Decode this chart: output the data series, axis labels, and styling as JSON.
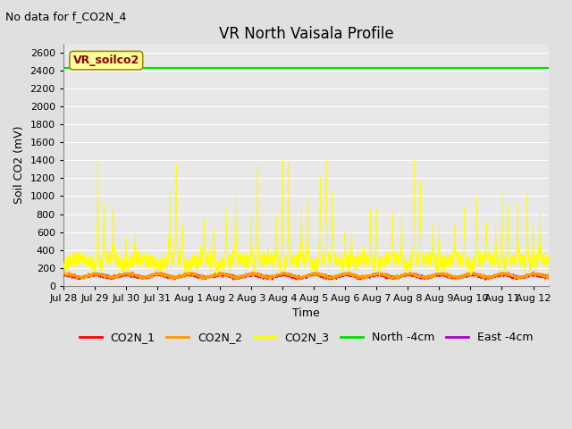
{
  "title": "VR North Vaisala Profile",
  "no_data_text": "No data for f_CO2N_4",
  "ylabel": "Soil CO2 (mV)",
  "xlabel": "Time",
  "annotation_box": "VR_soilco2",
  "ylim": [
    0,
    2700
  ],
  "yticks": [
    0,
    200,
    400,
    600,
    800,
    1000,
    1200,
    1400,
    1600,
    1800,
    2000,
    2200,
    2400,
    2600
  ],
  "x_tick_labels": [
    "Jul 28",
    "Jul 29",
    "Jul 30",
    "Jul 31",
    "Aug 1",
    "Aug 2",
    "Aug 3",
    "Aug 4",
    "Aug 5",
    "Aug 6",
    "Aug 7",
    "Aug 8",
    "Aug 9",
    "Aug 10",
    "Aug 11",
    "Aug 12"
  ],
  "x_tick_positions": [
    0,
    1,
    2,
    3,
    4,
    5,
    6,
    7,
    8,
    9,
    10,
    11,
    12,
    13,
    14,
    15
  ],
  "n_days": 15.5,
  "north_4cm_value": 2430,
  "north_4cm_color": "#00dd00",
  "east_4cm_color": "#aa00cc",
  "co2n1_color": "#ff0000",
  "co2n2_color": "#ff9900",
  "co2n3_color": "#ffff00",
  "bg_color": "#e0e0e0",
  "plot_bg_color": "#e8e8e8",
  "grid_color": "#ffffff",
  "annotation_bg": "#ffff99",
  "annotation_border_color": "#aa8800",
  "annotation_text_color": "#880000",
  "legend_labels": [
    "CO2N_1",
    "CO2N_2",
    "CO2N_3",
    "North -4cm",
    "East -4cm"
  ],
  "legend_colors": [
    "#ff0000",
    "#ff9900",
    "#ffff00",
    "#00dd00",
    "#aa00cc"
  ],
  "title_fontsize": 12,
  "label_fontsize": 9,
  "tick_fontsize": 8,
  "no_data_fontsize": 9,
  "annotation_fontsize": 9,
  "legend_fontsize": 9
}
